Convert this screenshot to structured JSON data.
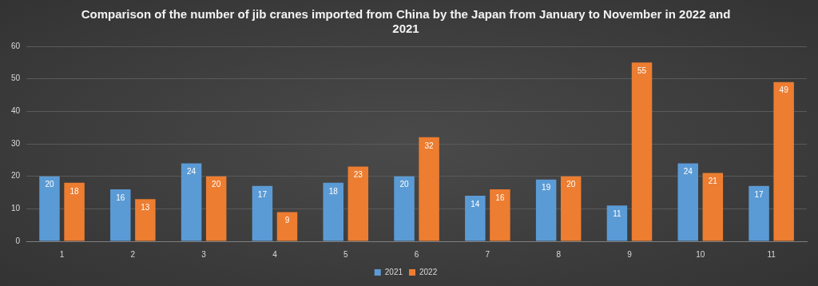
{
  "chart_data": {
    "type": "bar",
    "title": "Comparison of the number of jib cranes imported from China by the Japan from January to November in 2022 and 2021",
    "categories": [
      "1",
      "2",
      "3",
      "4",
      "5",
      "6",
      "7",
      "8",
      "9",
      "10",
      "11"
    ],
    "series": [
      {
        "name": "2021",
        "color": "#5b9bd5",
        "values": [
          20,
          16,
          24,
          17,
          18,
          20,
          14,
          19,
          11,
          24,
          17
        ]
      },
      {
        "name": "2022",
        "color": "#ed7d31",
        "values": [
          18,
          13,
          20,
          9,
          23,
          32,
          16,
          20,
          55,
          21,
          49
        ]
      }
    ],
    "ylim": [
      0,
      60
    ],
    "yticks": [
      0,
      10,
      20,
      30,
      40,
      50,
      60
    ],
    "grid": true,
    "legend": "bottom",
    "data_labels": true
  }
}
